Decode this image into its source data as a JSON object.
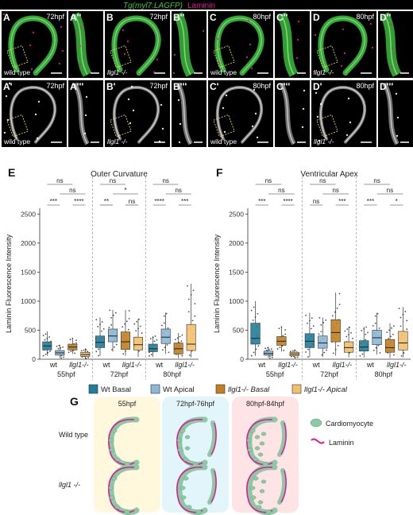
{
  "figure_title": {
    "part1": "Tg(myl7:LAGFP)",
    "part2": "Laminin"
  },
  "micrographs": [
    {
      "label": "A",
      "time": "72hpf",
      "genotype": "wild type"
    },
    {
      "label": "A''",
      "time": "",
      "genotype": ""
    },
    {
      "label": "B",
      "time": "72hpf",
      "genotype": "llgl1 -/-"
    },
    {
      "label": "B''",
      "time": "",
      "genotype": ""
    },
    {
      "label": "C",
      "time": "80hpf",
      "genotype": "wild type"
    },
    {
      "label": "C''",
      "time": "",
      "genotype": ""
    },
    {
      "label": "D",
      "time": "80hpf",
      "genotype": "llgl1 -/-"
    },
    {
      "label": "D''",
      "time": "",
      "genotype": ""
    },
    {
      "label": "A'",
      "time": "72hpf",
      "genotype": "wild type"
    },
    {
      "label": "A'''",
      "time": "",
      "genotype": ""
    },
    {
      "label": "B'",
      "time": "72hpf",
      "genotype": "llgl1 -/-"
    },
    {
      "label": "B'''",
      "time": "",
      "genotype": ""
    },
    {
      "label": "C'",
      "time": "80hpf",
      "genotype": "wild type"
    },
    {
      "label": "C'''",
      "time": "",
      "genotype": ""
    },
    {
      "label": "D'",
      "time": "80hpf",
      "genotype": "llgl1 -/-"
    },
    {
      "label": "D'''",
      "time": "",
      "genotype": ""
    }
  ],
  "panelE": {
    "letter": "E",
    "title": "Outer Curvature"
  },
  "panelF": {
    "letter": "F",
    "title": "Ventricular Apex"
  },
  "panelG": {
    "letter": "G"
  },
  "legend": [
    "Wt Basal",
    "Wt Apical",
    "llgl1-/- Basal",
    "llgl1-/- Apical"
  ],
  "colors": {
    "wt_basal": "#1f7e9a",
    "wt_apical": "#8ab8d6",
    "mut_basal": "#c27f1f",
    "mut_apical": "#f3c06a",
    "green": "#3ec63e",
    "magenta": "#e6159a",
    "cell": "#8ccaa6"
  },
  "schematic": {
    "times": [
      "55hpf",
      "72hpf-76hpf",
      "80hpf-84hpf"
    ],
    "rows": [
      "Wild type",
      "llgl1 -/-"
    ],
    "legend": [
      "Cardiomyocyte",
      "Laminin"
    ]
  },
  "chart_data": [
    {
      "type": "box",
      "title": "Outer Curvature",
      "ylabel": "Laminin Fluorescence Intensity",
      "ylim": [
        0,
        2600
      ],
      "yticks": [
        0,
        500,
        1000,
        1500,
        2000,
        2500
      ],
      "timepoints": [
        "55hpf",
        "72hpf",
        "80hpf"
      ],
      "genotype_labels": [
        "wt",
        "llgl1-/-"
      ],
      "series_names": [
        "Wt Basal",
        "Wt Apical",
        "llgl1-/- Basal",
        "llgl1-/- Apical"
      ],
      "groups": [
        {
          "time": "55hpf",
          "series": "Wt Basal",
          "q1": 160,
          "median": 230,
          "q3": 300,
          "lo": 60,
          "hi": 480
        },
        {
          "time": "55hpf",
          "series": "Wt Apical",
          "q1": 70,
          "median": 110,
          "q3": 150,
          "lo": 20,
          "hi": 250
        },
        {
          "time": "55hpf",
          "series": "llgl1-/- Basal",
          "q1": 160,
          "median": 210,
          "q3": 260,
          "lo": 90,
          "hi": 360
        },
        {
          "time": "55hpf",
          "series": "llgl1-/- Apical",
          "q1": 50,
          "median": 80,
          "q3": 120,
          "lo": 10,
          "hi": 190
        },
        {
          "time": "72hpf",
          "series": "Wt Basal",
          "q1": 200,
          "median": 290,
          "q3": 400,
          "lo": 60,
          "hi": 720
        },
        {
          "time": "72hpf",
          "series": "Wt Apical",
          "q1": 300,
          "median": 400,
          "q3": 520,
          "lo": 130,
          "hi": 850
        },
        {
          "time": "72hpf",
          "series": "llgl1-/- Basal",
          "q1": 170,
          "median": 300,
          "q3": 470,
          "lo": 60,
          "hi": 850
        },
        {
          "time": "72hpf",
          "series": "llgl1-/- Apical",
          "q1": 160,
          "median": 250,
          "q3": 380,
          "lo": 40,
          "hi": 700
        },
        {
          "time": "80hpf",
          "series": "Wt Basal",
          "q1": 130,
          "median": 180,
          "q3": 260,
          "lo": 40,
          "hi": 400
        },
        {
          "time": "80hpf",
          "series": "Wt Apical",
          "q1": 270,
          "median": 380,
          "q3": 520,
          "lo": 90,
          "hi": 800
        },
        {
          "time": "80hpf",
          "series": "llgl1-/- Basal",
          "q1": 90,
          "median": 180,
          "q3": 280,
          "lo": 20,
          "hi": 450
        },
        {
          "time": "80hpf",
          "series": "llgl1-/- Apical",
          "q1": 150,
          "median": 260,
          "q3": 600,
          "lo": 30,
          "hi": 1300
        }
      ],
      "significance": [
        {
          "time": "55hpf",
          "a": 0,
          "b": 1,
          "text": "***"
        },
        {
          "time": "55hpf",
          "a": 2,
          "b": 3,
          "text": "****"
        },
        {
          "time": "55hpf",
          "a": 1,
          "b": 3,
          "text": "ns"
        },
        {
          "time": "55hpf",
          "a": 0,
          "b": 2,
          "text": "ns"
        },
        {
          "time": "72hpf",
          "a": 0,
          "b": 1,
          "text": "**"
        },
        {
          "time": "72hpf",
          "a": 2,
          "b": 3,
          "text": "ns"
        },
        {
          "time": "72hpf",
          "a": 1,
          "b": 3,
          "text": "*"
        },
        {
          "time": "72hpf",
          "a": 0,
          "b": 2,
          "text": "ns"
        },
        {
          "time": "80hpf",
          "a": 0,
          "b": 1,
          "text": "****"
        },
        {
          "time": "80hpf",
          "a": 2,
          "b": 3,
          "text": "***"
        },
        {
          "time": "80hpf",
          "a": 1,
          "b": 3,
          "text": "ns"
        },
        {
          "time": "80hpf",
          "a": 0,
          "b": 2,
          "text": "ns"
        }
      ]
    },
    {
      "type": "box",
      "title": "Ventricular Apex",
      "ylabel": "Laminin Fluorescence Intensity",
      "ylim": [
        0,
        2600
      ],
      "yticks": [
        0,
        500,
        1000,
        1500,
        2000,
        2500
      ],
      "timepoints": [
        "55hpf",
        "72hpf",
        "80hpf"
      ],
      "genotype_labels": [
        "wt",
        "llgl1-/-"
      ],
      "series_names": [
        "Wt Basal",
        "Wt Apical",
        "llgl1-/- Basal",
        "llgl1-/- Apical"
      ],
      "groups": [
        {
          "time": "55hpf",
          "series": "Wt Basal",
          "q1": 260,
          "median": 360,
          "q3": 620,
          "lo": 60,
          "hi": 1000
        },
        {
          "time": "55hpf",
          "series": "Wt Apical",
          "q1": 70,
          "median": 100,
          "q3": 140,
          "lo": 20,
          "hi": 210
        },
        {
          "time": "55hpf",
          "series": "llgl1-/- Basal",
          "q1": 240,
          "median": 310,
          "q3": 390,
          "lo": 130,
          "hi": 560
        },
        {
          "time": "55hpf",
          "series": "llgl1-/- Apical",
          "q1": 60,
          "median": 90,
          "q3": 120,
          "lo": 20,
          "hi": 170
        },
        {
          "time": "72hpf",
          "series": "Wt Basal",
          "q1": 200,
          "median": 310,
          "q3": 440,
          "lo": 40,
          "hi": 800
        },
        {
          "time": "72hpf",
          "series": "Wt Apical",
          "q1": 190,
          "median": 280,
          "q3": 400,
          "lo": 40,
          "hi": 720
        },
        {
          "time": "72hpf",
          "series": "llgl1-/- Basal",
          "q1": 300,
          "median": 460,
          "q3": 680,
          "lo": 60,
          "hi": 1150
        },
        {
          "time": "72hpf",
          "series": "llgl1-/- Apical",
          "q1": 120,
          "median": 200,
          "q3": 300,
          "lo": 30,
          "hi": 560
        },
        {
          "time": "80hpf",
          "series": "Wt Basal",
          "q1": 140,
          "median": 210,
          "q3": 320,
          "lo": 30,
          "hi": 560
        },
        {
          "time": "80hpf",
          "series": "Wt Apical",
          "q1": 250,
          "median": 370,
          "q3": 500,
          "lo": 80,
          "hi": 800
        },
        {
          "time": "80hpf",
          "series": "llgl1-/- Basal",
          "q1": 120,
          "median": 200,
          "q3": 340,
          "lo": 20,
          "hi": 620
        },
        {
          "time": "80hpf",
          "series": "llgl1-/- Apical",
          "q1": 160,
          "median": 280,
          "q3": 480,
          "lo": 30,
          "hi": 900
        }
      ],
      "significance": [
        {
          "time": "55hpf",
          "a": 0,
          "b": 1,
          "text": "***"
        },
        {
          "time": "55hpf",
          "a": 2,
          "b": 3,
          "text": "****"
        },
        {
          "time": "55hpf",
          "a": 1,
          "b": 3,
          "text": "ns"
        },
        {
          "time": "55hpf",
          "a": 0,
          "b": 2,
          "text": "ns"
        },
        {
          "time": "72hpf",
          "a": 0,
          "b": 1,
          "text": "ns"
        },
        {
          "time": "72hpf",
          "a": 2,
          "b": 3,
          "text": "***"
        },
        {
          "time": "72hpf",
          "a": 1,
          "b": 3,
          "text": "ns"
        },
        {
          "time": "72hpf",
          "a": 0,
          "b": 2,
          "text": "ns"
        },
        {
          "time": "80hpf",
          "a": 0,
          "b": 1,
          "text": "***"
        },
        {
          "time": "80hpf",
          "a": 2,
          "b": 3,
          "text": "*"
        },
        {
          "time": "80hpf",
          "a": 1,
          "b": 3,
          "text": "ns"
        },
        {
          "time": "80hpf",
          "a": 0,
          "b": 2,
          "text": "ns"
        }
      ]
    }
  ]
}
